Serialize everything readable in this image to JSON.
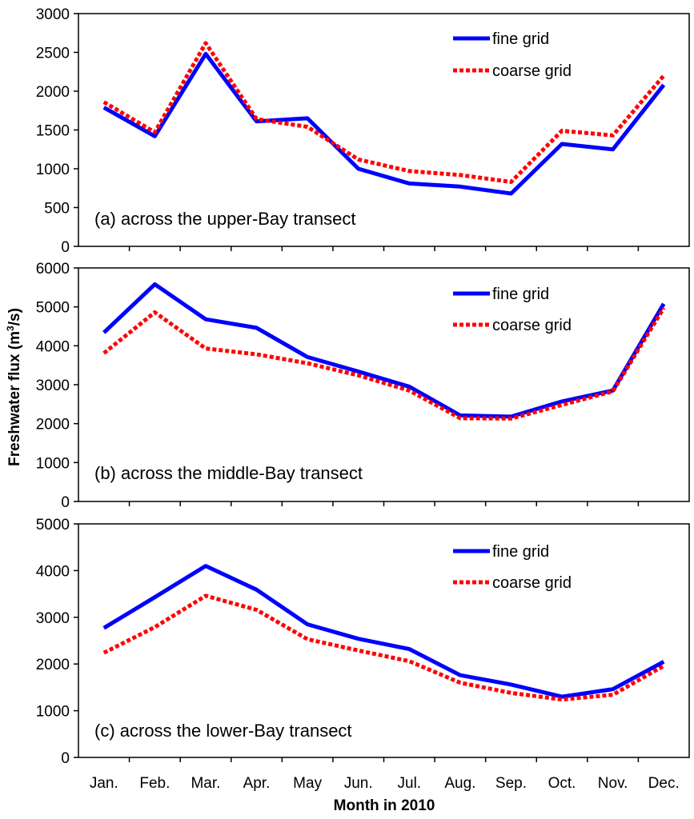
{
  "figure": {
    "ylabel_main": "Freshwater flux (m",
    "ylabel_sup": "3",
    "ylabel_tail": "/s)",
    "xlabel": "Month in 2010",
    "months": [
      "Jan.",
      "Feb.",
      "Mar.",
      "Apr.",
      "May",
      "Jun.",
      "Jul.",
      "Aug.",
      "Sep.",
      "Oct.",
      "Nov.",
      "Dec."
    ],
    "colors": {
      "fine": "#0000ff",
      "coarse": "#ff0000"
    }
  },
  "chart_data": [
    {
      "type": "line",
      "title": "(a) across the upper-Bay transect",
      "categories": [
        "Jan.",
        "Feb.",
        "Mar.",
        "Apr.",
        "May",
        "Jun.",
        "Jul.",
        "Aug.",
        "Sep.",
        "Oct.",
        "Nov.",
        "Dec."
      ],
      "ylim": [
        0,
        3000
      ],
      "yticks": [
        0,
        500,
        1000,
        1500,
        2000,
        2500,
        3000
      ],
      "legend": [
        "fine grid",
        "coarse grid"
      ],
      "series": [
        {
          "name": "fine grid",
          "values": [
            1790,
            1420,
            2480,
            1610,
            1650,
            1000,
            810,
            770,
            680,
            1320,
            1250,
            2080
          ]
        },
        {
          "name": "coarse grid",
          "values": [
            1860,
            1470,
            2620,
            1640,
            1540,
            1120,
            970,
            920,
            830,
            1490,
            1430,
            2200
          ]
        }
      ]
    },
    {
      "type": "line",
      "title": "(b) across the middle-Bay transect",
      "categories": [
        "Jan.",
        "Feb.",
        "Mar.",
        "Apr.",
        "May",
        "Jun.",
        "Jul.",
        "Aug.",
        "Sep.",
        "Oct.",
        "Nov.",
        "Dec."
      ],
      "ylim": [
        0,
        6000
      ],
      "yticks": [
        0,
        1000,
        2000,
        3000,
        4000,
        5000,
        6000
      ],
      "legend": [
        "fine grid",
        "coarse grid"
      ],
      "series": [
        {
          "name": "fine grid",
          "values": [
            4340,
            5580,
            4680,
            4460,
            3710,
            3340,
            2950,
            2210,
            2180,
            2570,
            2850,
            5080
          ]
        },
        {
          "name": "coarse grid",
          "values": [
            3810,
            4860,
            3930,
            3780,
            3550,
            3240,
            2850,
            2140,
            2130,
            2480,
            2830,
            4970
          ]
        }
      ]
    },
    {
      "type": "line",
      "title": "(c) across the lower-Bay transect",
      "categories": [
        "Jan.",
        "Feb.",
        "Mar.",
        "Apr.",
        "May",
        "Jun.",
        "Jul.",
        "Aug.",
        "Sep.",
        "Oct.",
        "Nov.",
        "Dec."
      ],
      "ylim": [
        0,
        5000
      ],
      "yticks": [
        0,
        1000,
        2000,
        3000,
        4000,
        5000
      ],
      "legend": [
        "fine grid",
        "coarse grid"
      ],
      "series": [
        {
          "name": "fine grid",
          "values": [
            2770,
            3430,
            4100,
            3590,
            2850,
            2540,
            2320,
            1760,
            1560,
            1300,
            1460,
            2050
          ]
        },
        {
          "name": "coarse grid",
          "values": [
            2240,
            2790,
            3460,
            3160,
            2530,
            2290,
            2060,
            1600,
            1380,
            1240,
            1340,
            1960
          ]
        }
      ]
    }
  ]
}
